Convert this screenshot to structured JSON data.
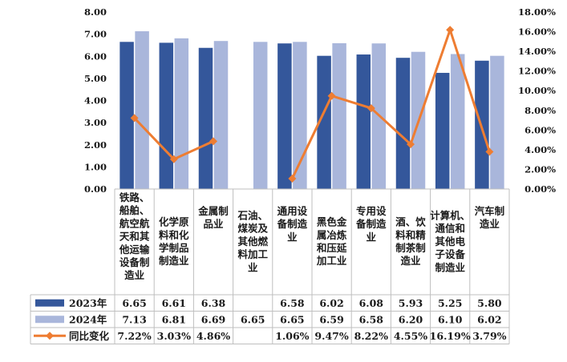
{
  "chart_data": {
    "type": "bar",
    "categories": [
      "铁路、船舶、航空航天和其他运输设备制造业",
      "化学原料和化学制品制造业",
      "金属制品业",
      "石油、煤炭及其他燃料加工业",
      "通用设备制造业",
      "黑色金属冶炼和压延加工业",
      "专用设备制造业",
      "酒、饮料和精制茶制造业",
      "计算机、通信和其他电子设备制造业",
      "汽车制造业"
    ],
    "category_lines": [
      [
        "铁路、",
        "船舶、",
        "航空航",
        "天和其",
        "他运输",
        "设备制",
        "造业"
      ],
      [
        "化学原",
        "料和化",
        "学制品",
        "制造业"
      ],
      [
        "金属制",
        "品业"
      ],
      [
        "石油、",
        "煤炭及",
        "其他燃",
        "料加工",
        "业"
      ],
      [
        "通用设",
        "备制造",
        "业"
      ],
      [
        "黑色金",
        "属冶炼",
        "和压延",
        "加工业"
      ],
      [
        "专用设",
        "备制造",
        "业"
      ],
      [
        "酒、饮",
        "料和精",
        "制茶制",
        "造业"
      ],
      [
        "计算机、",
        "通信和",
        "其他电",
        "子设备",
        "制造业"
      ],
      [
        "汽车制",
        "造业"
      ]
    ],
    "series": [
      {
        "name": "2023年",
        "type": "bar",
        "color": "#34579b",
        "values": [
          6.65,
          6.61,
          6.38,
          null,
          6.58,
          6.02,
          6.08,
          5.93,
          5.25,
          5.8
        ],
        "labels": [
          "6.65",
          "6.61",
          "6.38",
          "",
          "6.58",
          "6.02",
          "6.08",
          "5.93",
          "5.25",
          "5.80"
        ]
      },
      {
        "name": "2024年",
        "type": "bar",
        "color": "#a9b6db",
        "values": [
          7.13,
          6.81,
          6.69,
          6.65,
          6.65,
          6.59,
          6.58,
          6.2,
          6.1,
          6.02
        ],
        "labels": [
          "7.13",
          "6.81",
          "6.69",
          "6.65",
          "6.65",
          "6.59",
          "6.58",
          "6.20",
          "6.10",
          "6.02"
        ]
      },
      {
        "name": "同比变化",
        "type": "line",
        "axis": "right",
        "color": "#ee7d32",
        "values": [
          7.22,
          3.03,
          4.86,
          null,
          1.06,
          9.47,
          8.22,
          4.55,
          16.19,
          3.79
        ],
        "labels": [
          "7.22%",
          "3.03%",
          "4.86%",
          "",
          "1.06%",
          "9.47%",
          "8.22%",
          "4.55%",
          "16.19%",
          "3.79%"
        ]
      }
    ],
    "ylim": [
      0,
      8
    ],
    "yticks": [
      "0.00",
      "1.00",
      "2.00",
      "3.00",
      "4.00",
      "5.00",
      "6.00",
      "7.00",
      "8.00"
    ],
    "y2lim": [
      0,
      18
    ],
    "y2ticks": [
      "0.00%",
      "2.00%",
      "4.00%",
      "6.00%",
      "8.00%",
      "10.00%",
      "12.00%",
      "14.00%",
      "16.00%",
      "18.00%"
    ],
    "grid": false,
    "legend": "data-table"
  }
}
